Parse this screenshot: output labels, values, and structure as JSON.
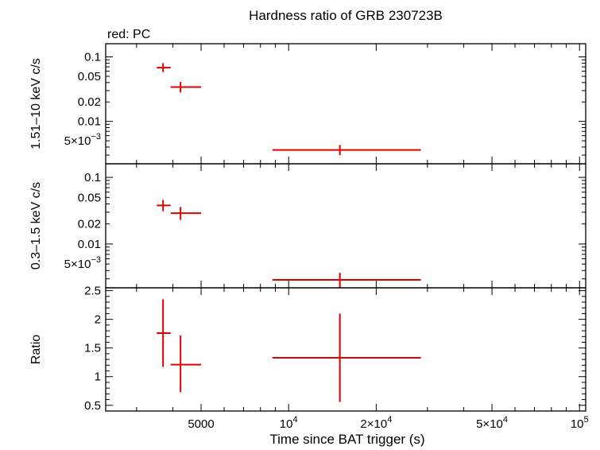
{
  "chart_data": {
    "type": "scatter",
    "title": "Hardness ratio of GRB 230723B",
    "annotation": "red: PC",
    "x_axis": {
      "label": "Time since BAT trigger (s)",
      "scale": "log",
      "range": [
        2350,
        105000
      ],
      "ticks": [
        {
          "value": 5000,
          "label": "5000",
          "base": "",
          "exp": ""
        },
        {
          "value": 10000,
          "label": "10",
          "base": "",
          "exp": "4"
        },
        {
          "value": 20000,
          "label": "2×10",
          "base": "",
          "exp": "4"
        },
        {
          "value": 50000,
          "label": "5×10",
          "base": "",
          "exp": "4"
        },
        {
          "value": 100000,
          "label": "10",
          "base": "",
          "exp": "5"
        }
      ]
    },
    "panels": [
      {
        "name": "hard-band",
        "ylabel": "1.51–10 keV c/s",
        "yscale": "log",
        "ylim": [
          0.0022,
          0.16
        ],
        "yticks": [
          {
            "value": 0.1,
            "label": "0.1",
            "exp": ""
          },
          {
            "value": 0.05,
            "label": "0.05",
            "exp": ""
          },
          {
            "value": 0.02,
            "label": "0.02",
            "exp": ""
          },
          {
            "value": 0.01,
            "label": "0.01",
            "exp": ""
          },
          {
            "value": 0.005,
            "label": "5×10",
            "exp": "−3"
          }
        ],
        "points": [
          {
            "x": 3700,
            "xlo": 3520,
            "xhi": 3930,
            "y": 0.068,
            "ylo": 0.058,
            "yhi": 0.08
          },
          {
            "x": 4250,
            "xlo": 3930,
            "xhi": 5000,
            "y": 0.034,
            "ylo": 0.028,
            "yhi": 0.041
          },
          {
            "x": 15000,
            "xlo": 8800,
            "xhi": 28500,
            "y": 0.0036,
            "ylo": 0.003,
            "yhi": 0.0043
          }
        ]
      },
      {
        "name": "soft-band",
        "ylabel": "0.3–1.5 keV c/s",
        "yscale": "log",
        "ylim": [
          0.0022,
          0.16
        ],
        "yticks": [
          {
            "value": 0.1,
            "label": "0.1",
            "exp": ""
          },
          {
            "value": 0.05,
            "label": "0.05",
            "exp": ""
          },
          {
            "value": 0.02,
            "label": "0.02",
            "exp": ""
          },
          {
            "value": 0.01,
            "label": "0.01",
            "exp": ""
          },
          {
            "value": 0.005,
            "label": "5×10",
            "exp": "−3"
          }
        ],
        "points": [
          {
            "x": 3700,
            "xlo": 3520,
            "xhi": 3930,
            "y": 0.038,
            "ylo": 0.031,
            "yhi": 0.046
          },
          {
            "x": 4250,
            "xlo": 3930,
            "xhi": 5000,
            "y": 0.029,
            "ylo": 0.023,
            "yhi": 0.036
          },
          {
            "x": 15000,
            "xlo": 8800,
            "xhi": 28500,
            "y": 0.0029,
            "ylo": 0.0022,
            "yhi": 0.0037
          }
        ]
      },
      {
        "name": "ratio",
        "ylabel": "Ratio",
        "yscale": "linear",
        "ylim": [
          0.4,
          2.55
        ],
        "yticks": [
          {
            "value": 2.5,
            "label": "2.5",
            "exp": ""
          },
          {
            "value": 2,
            "label": "2",
            "exp": ""
          },
          {
            "value": 1.5,
            "label": "1.5",
            "exp": ""
          },
          {
            "value": 1,
            "label": "1",
            "exp": ""
          },
          {
            "value": 0.5,
            "label": "0.5",
            "exp": ""
          }
        ],
        "points": [
          {
            "x": 3700,
            "xlo": 3520,
            "xhi": 3930,
            "y": 1.76,
            "ylo": 1.17,
            "yhi": 2.35
          },
          {
            "x": 4250,
            "xlo": 3930,
            "xhi": 5000,
            "y": 1.21,
            "ylo": 0.73,
            "yhi": 1.72
          },
          {
            "x": 15000,
            "xlo": 8800,
            "xhi": 28500,
            "y": 1.33,
            "ylo": 0.56,
            "yhi": 2.1
          }
        ]
      }
    ],
    "colors": {
      "points": "#e00000",
      "axes": "#000000"
    }
  }
}
